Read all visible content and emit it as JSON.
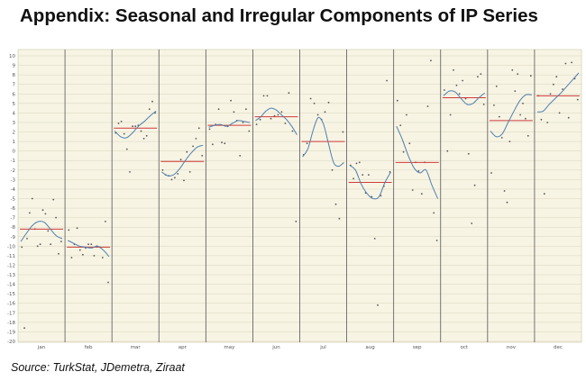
{
  "title": "Appendix: Seasonal and Irregular Components of IP Series",
  "source": "Source: TurkStat, JDemetra, Ziraat",
  "colors": {
    "background": "#f7f4e4",
    "grid": "#d8d4bc",
    "panel_border": "#555555",
    "seasonal_line": "#4f7fae",
    "mean_line": "#d03a3a",
    "points": "#555555"
  },
  "chart_data": {
    "type": "line",
    "title": "",
    "xlabel": "",
    "ylabel": "",
    "ylim": [
      -20,
      10
    ],
    "y_ticks": [
      10,
      9,
      8,
      7,
      6,
      5,
      4,
      3,
      2,
      1,
      0,
      -1,
      -2,
      -3,
      -4,
      -5,
      -6,
      -7,
      -8,
      -9,
      -10,
      -11,
      -12,
      -13,
      -14,
      -15,
      -16,
      -17,
      -18,
      -19,
      -20
    ],
    "grid": true,
    "panels": [
      {
        "month": "jan",
        "mean": -8.2,
        "seasonal": [
          -9.5,
          -8.6,
          -7.8,
          -7.4,
          -7.5,
          -8.2,
          -8.9,
          -9.2
        ],
        "irregular": [
          -10.1,
          -18.6,
          -9.2,
          -6.5,
          -5.0,
          -8.2,
          -10.0,
          -9.8,
          -6.2,
          -6.6,
          -8.4,
          -9.8,
          -5.1,
          -7.0,
          -10.8,
          -9.5
        ]
      },
      {
        "month": "feb",
        "mean": -10.1,
        "seasonal": [
          -9.4,
          -9.7,
          -10.0,
          -10.1,
          -10.2,
          -10.0,
          -10.4,
          -11.1
        ],
        "irregular": [
          -8.3,
          -11.2,
          -9.8,
          -8.1,
          -10.4,
          -10.9,
          -10.2,
          -9.8,
          -9.8,
          -11.0,
          -10.0,
          -10.1,
          -11.2,
          -7.4,
          -13.8
        ]
      },
      {
        "month": "mar",
        "mean": 2.4,
        "seasonal": [
          2.1,
          1.5,
          1.4,
          1.9,
          2.6,
          3.1,
          3.7,
          4.2
        ],
        "irregular": [
          1.9,
          2.9,
          3.1,
          1.8,
          0.2,
          -2.2,
          2.6,
          2.6,
          2.7,
          2.1,
          1.3,
          1.6,
          4.4,
          5.2,
          4.0
        ]
      },
      {
        "month": "apr",
        "mean": -1.1,
        "seasonal": [
          -2.2,
          -2.6,
          -2.5,
          -1.9,
          -1.0,
          -0.2,
          0.4,
          0.6
        ],
        "irregular": [
          -2.0,
          -2.5,
          -2.6,
          -3.0,
          -2.8,
          -2.4,
          -0.9,
          -3.1,
          -0.1,
          -2.2,
          0.5,
          1.3,
          2.4,
          -0.5
        ]
      },
      {
        "month": "may",
        "mean": 2.7,
        "seasonal": [
          2.5,
          2.7,
          2.8,
          2.6,
          2.9,
          3.2,
          3.1,
          3.0
        ],
        "irregular": [
          2.3,
          0.7,
          2.8,
          4.4,
          0.9,
          0.8,
          2.6,
          5.3,
          4.1,
          3.2,
          -0.5,
          3.0,
          4.4,
          2.1
        ]
      },
      {
        "month": "jun",
        "mean": 3.6,
        "seasonal": [
          3.2,
          3.6,
          4.2,
          4.5,
          4.3,
          3.8,
          3.3,
          2.6,
          1.7
        ],
        "irregular": [
          2.8,
          3.3,
          5.8,
          5.8,
          3.4,
          3.7,
          3.8,
          4.1,
          2.9,
          6.1,
          2.1,
          -7.4
        ]
      },
      {
        "month": "jul",
        "mean": 1.0,
        "seasonal": [
          -0.6,
          0.2,
          2.1,
          3.5,
          2.9,
          0.8,
          -1.2,
          -1.6,
          -1.2
        ],
        "irregular": [
          -0.4,
          0.8,
          5.5,
          5.0,
          3.8,
          3.3,
          4.1,
          5.1,
          -2.0,
          -5.6,
          -7.1,
          2.0
        ]
      },
      {
        "month": "aug",
        "mean": -3.3,
        "seasonal": [
          -1.5,
          -2.0,
          -3.5,
          -4.5,
          -5.0,
          -4.8,
          -3.3,
          -2.2
        ],
        "irregular": [
          -1.5,
          -2.9,
          -1.3,
          -1.2,
          -2.5,
          -4.4,
          -2.5,
          -4.8,
          -9.2,
          -16.2,
          -4.7,
          -3.7,
          7.4,
          -2.2
        ]
      },
      {
        "month": "sep",
        "mean": -1.2,
        "seasonal": [
          2.6,
          1.2,
          -0.5,
          -1.8,
          -2.3,
          -2.0,
          -3.6,
          -5.0
        ],
        "irregular": [
          5.3,
          2.7,
          -0.1,
          3.8,
          0.8,
          -4.1,
          -1.2,
          -2.1,
          -4.5,
          -1.2,
          4.7,
          9.5,
          -6.5,
          -9.4
        ]
      },
      {
        "month": "oct",
        "mean": 5.6,
        "seasonal": [
          5.8,
          6.3,
          6.2,
          5.5,
          4.9,
          5.0,
          5.6,
          6.1
        ],
        "irregular": [
          6.4,
          0.0,
          3.8,
          8.5,
          6.9,
          6.0,
          7.4,
          5.5,
          -0.3,
          -7.6,
          -3.6,
          7.8,
          8.1,
          4.9
        ]
      },
      {
        "month": "nov",
        "mean": 3.2,
        "seasonal": [
          2.1,
          1.5,
          1.8,
          3.0,
          4.2,
          5.3,
          5.9,
          5.9
        ],
        "irregular": [
          -2.3,
          4.8,
          6.8,
          3.6,
          1.4,
          -4.2,
          -5.4,
          1.0,
          8.5,
          6.3,
          8.1,
          3.8,
          5.0,
          3.4,
          1.6,
          7.9
        ]
      },
      {
        "month": "dec",
        "mean": 5.8,
        "seasonal": [
          4.1,
          4.2,
          4.9,
          5.5,
          6.1,
          6.8,
          7.5,
          8.2
        ],
        "irregular": [
          5.8,
          3.3,
          -4.5,
          3.0,
          6.0,
          7.0,
          7.8,
          4.0,
          6.5,
          9.2,
          3.5,
          9.3,
          7.6,
          5.4
        ]
      }
    ]
  }
}
